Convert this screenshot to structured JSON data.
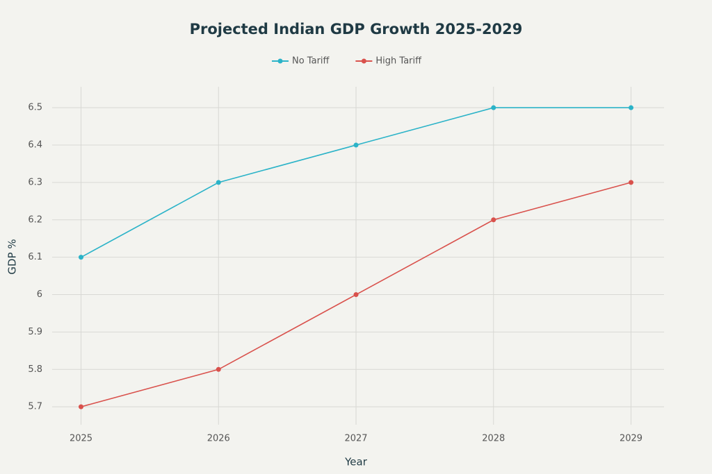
{
  "chart_data": {
    "type": "line",
    "title": "Projected Indian GDP Growth 2025-2029",
    "x": [
      2025,
      2026,
      2027,
      2028,
      2029
    ],
    "series": [
      {
        "name": "No Tariff",
        "color": "#2bb3c8",
        "values": [
          6.1,
          6.3,
          6.4,
          6.5,
          6.5
        ]
      },
      {
        "name": "High Tariff",
        "color": "#d9514c",
        "values": [
          5.7,
          5.8,
          6.0,
          6.2,
          6.3
        ]
      }
    ],
    "x_label": "Year",
    "y_label": "GDP %",
    "xlim": [
      2024.79,
      2029.24
    ],
    "xticks": [
      2025,
      2026,
      2027,
      2028,
      2029
    ],
    "ylim": [
      5.652,
      6.556
    ],
    "yticks": [
      5.7,
      5.8,
      5.9,
      6,
      6.1,
      6.2,
      6.3,
      6.4,
      6.5
    ],
    "grid": true,
    "legend": "top"
  }
}
